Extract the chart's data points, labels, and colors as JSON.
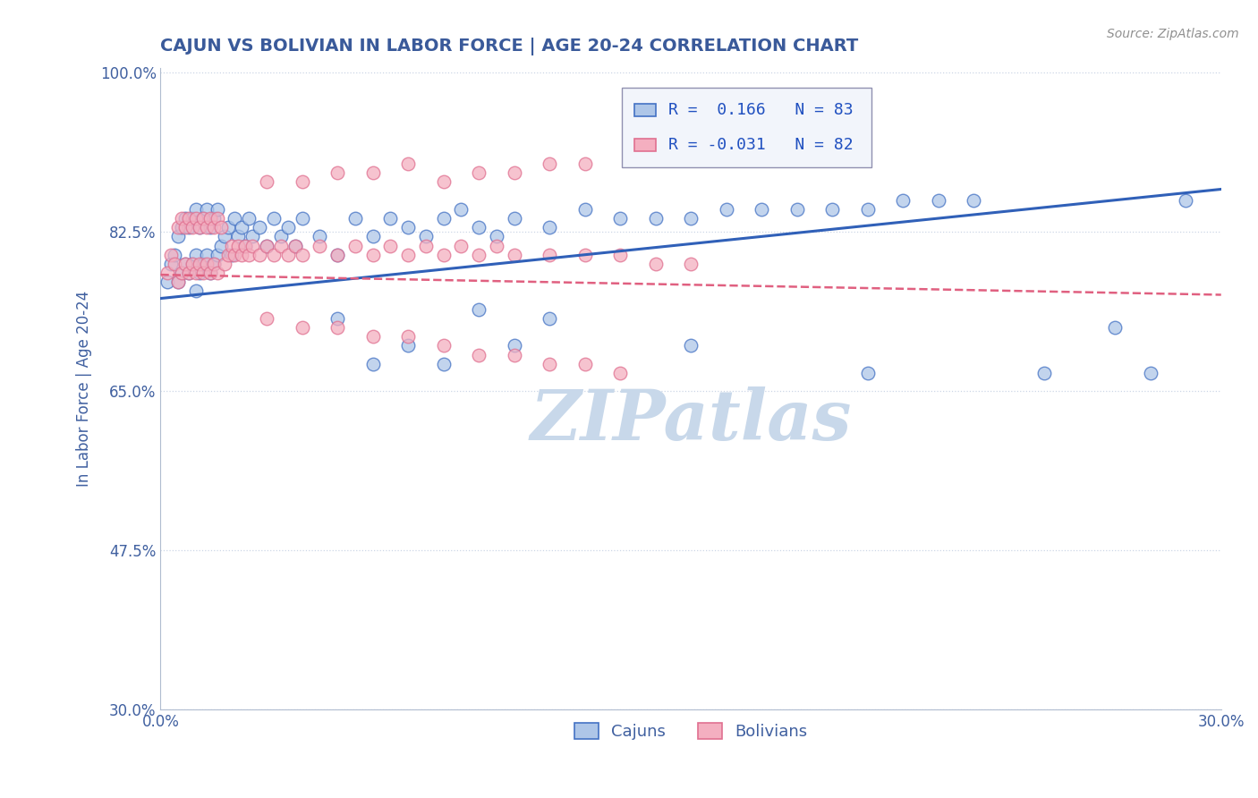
{
  "title": "CAJUN VS BOLIVIAN IN LABOR FORCE | AGE 20-24 CORRELATION CHART",
  "source_text": "Source: ZipAtlas.com",
  "ylabel": "In Labor Force | Age 20-24",
  "xlim": [
    0.0,
    0.3
  ],
  "ylim": [
    0.3,
    1.005
  ],
  "x_ticks": [
    0.0,
    0.05,
    0.1,
    0.15,
    0.2,
    0.25,
    0.3
  ],
  "x_tick_labels": [
    "0.0%",
    "",
    "",
    "",
    "",
    "",
    "30.0%"
  ],
  "y_ticks": [
    0.3,
    0.475,
    0.65,
    0.825,
    1.0
  ],
  "y_tick_labels": [
    "30.0%",
    "47.5%",
    "65.0%",
    "82.5%",
    "100.0%"
  ],
  "cajun_R": 0.166,
  "cajun_N": 83,
  "bolivian_R": -0.031,
  "bolivian_N": 82,
  "cajun_color": "#aec6e8",
  "bolivian_color": "#f4afc0",
  "cajun_edge_color": "#4472c4",
  "bolivian_edge_color": "#e07090",
  "cajun_line_color": "#3060b8",
  "bolivian_line_color": "#e06080",
  "watermark": "ZIPatlas",
  "watermark_color": "#c8d8ea",
  "title_color": "#3a5a9a",
  "title_fontsize": 14,
  "cajun_scatter_x": [
    0.002,
    0.003,
    0.004,
    0.005,
    0.005,
    0.006,
    0.006,
    0.007,
    0.007,
    0.008,
    0.008,
    0.009,
    0.009,
    0.01,
    0.01,
    0.01,
    0.011,
    0.011,
    0.012,
    0.012,
    0.013,
    0.013,
    0.014,
    0.014,
    0.015,
    0.015,
    0.016,
    0.016,
    0.017,
    0.018,
    0.019,
    0.02,
    0.021,
    0.022,
    0.023,
    0.024,
    0.025,
    0.026,
    0.028,
    0.03,
    0.032,
    0.034,
    0.036,
    0.038,
    0.04,
    0.045,
    0.05,
    0.055,
    0.06,
    0.065,
    0.07,
    0.075,
    0.08,
    0.085,
    0.09,
    0.095,
    0.1,
    0.11,
    0.12,
    0.13,
    0.14,
    0.15,
    0.16,
    0.17,
    0.18,
    0.19,
    0.2,
    0.21,
    0.22,
    0.23,
    0.05,
    0.06,
    0.07,
    0.08,
    0.09,
    0.1,
    0.11,
    0.15,
    0.2,
    0.25,
    0.27,
    0.28,
    0.29
  ],
  "cajun_scatter_y": [
    0.77,
    0.79,
    0.8,
    0.77,
    0.82,
    0.78,
    0.83,
    0.79,
    0.84,
    0.78,
    0.83,
    0.79,
    0.84,
    0.76,
    0.8,
    0.85,
    0.78,
    0.83,
    0.79,
    0.84,
    0.8,
    0.85,
    0.78,
    0.83,
    0.79,
    0.84,
    0.8,
    0.85,
    0.81,
    0.82,
    0.83,
    0.8,
    0.84,
    0.82,
    0.83,
    0.81,
    0.84,
    0.82,
    0.83,
    0.81,
    0.84,
    0.82,
    0.83,
    0.81,
    0.84,
    0.82,
    0.8,
    0.84,
    0.82,
    0.84,
    0.83,
    0.82,
    0.84,
    0.85,
    0.83,
    0.82,
    0.84,
    0.83,
    0.85,
    0.84,
    0.84,
    0.84,
    0.85,
    0.85,
    0.85,
    0.85,
    0.85,
    0.86,
    0.86,
    0.86,
    0.73,
    0.68,
    0.7,
    0.68,
    0.74,
    0.7,
    0.73,
    0.7,
    0.67,
    0.67,
    0.72,
    0.67,
    0.86
  ],
  "bolivian_scatter_x": [
    0.002,
    0.003,
    0.004,
    0.005,
    0.005,
    0.006,
    0.006,
    0.007,
    0.007,
    0.008,
    0.008,
    0.009,
    0.009,
    0.01,
    0.01,
    0.011,
    0.011,
    0.012,
    0.012,
    0.013,
    0.013,
    0.014,
    0.014,
    0.015,
    0.015,
    0.016,
    0.016,
    0.017,
    0.018,
    0.019,
    0.02,
    0.021,
    0.022,
    0.023,
    0.024,
    0.025,
    0.026,
    0.028,
    0.03,
    0.032,
    0.034,
    0.036,
    0.038,
    0.04,
    0.045,
    0.05,
    0.055,
    0.06,
    0.065,
    0.07,
    0.075,
    0.08,
    0.085,
    0.09,
    0.095,
    0.1,
    0.11,
    0.12,
    0.13,
    0.14,
    0.15,
    0.03,
    0.04,
    0.05,
    0.06,
    0.07,
    0.08,
    0.09,
    0.1,
    0.11,
    0.12,
    0.03,
    0.04,
    0.05,
    0.06,
    0.07,
    0.08,
    0.09,
    0.1,
    0.11,
    0.12,
    0.13
  ],
  "bolivian_scatter_y": [
    0.78,
    0.8,
    0.79,
    0.83,
    0.77,
    0.84,
    0.78,
    0.83,
    0.79,
    0.84,
    0.78,
    0.83,
    0.79,
    0.84,
    0.78,
    0.83,
    0.79,
    0.84,
    0.78,
    0.83,
    0.79,
    0.84,
    0.78,
    0.83,
    0.79,
    0.84,
    0.78,
    0.83,
    0.79,
    0.8,
    0.81,
    0.8,
    0.81,
    0.8,
    0.81,
    0.8,
    0.81,
    0.8,
    0.81,
    0.8,
    0.81,
    0.8,
    0.81,
    0.8,
    0.81,
    0.8,
    0.81,
    0.8,
    0.81,
    0.8,
    0.81,
    0.8,
    0.81,
    0.8,
    0.81,
    0.8,
    0.8,
    0.8,
    0.8,
    0.79,
    0.79,
    0.88,
    0.88,
    0.89,
    0.89,
    0.9,
    0.88,
    0.89,
    0.89,
    0.9,
    0.9,
    0.73,
    0.72,
    0.72,
    0.71,
    0.71,
    0.7,
    0.69,
    0.69,
    0.68,
    0.68,
    0.67
  ],
  "cajun_line_x": [
    0.0,
    0.3
  ],
  "cajun_line_y": [
    0.752,
    0.872
  ],
  "bolivian_line_x": [
    0.0,
    0.3
  ],
  "bolivian_line_y": [
    0.778,
    0.756
  ]
}
